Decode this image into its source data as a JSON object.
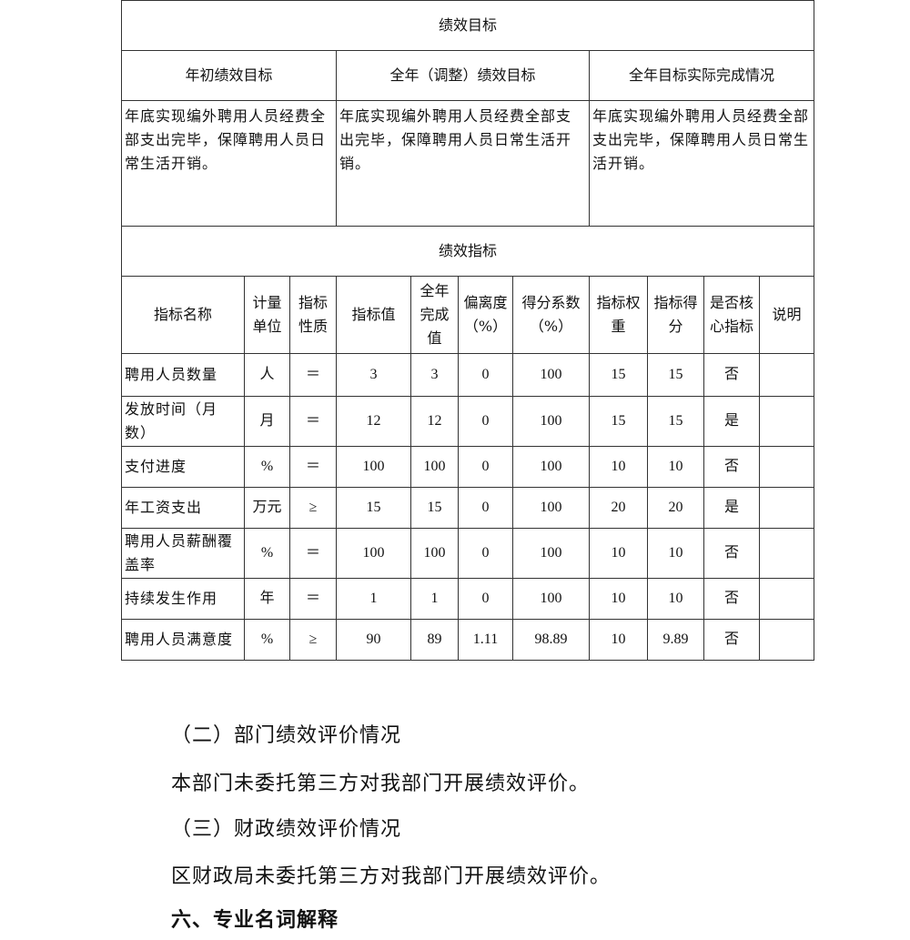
{
  "goal_section": {
    "title": "绩效目标",
    "headers": [
      "年初绩效目标",
      "全年（调整）绩效目标",
      "全年目标实际完成情况"
    ],
    "values": [
      "年底实现编外聘用人员经费全部支出完毕，保障聘用人员日常生活开销。",
      "年底实现编外聘用人员经费全部支出完毕，保障聘用人员日常生活开销。",
      "年底实现编外聘用人员经费全部支出完毕，保障聘用人员日常生活开销。"
    ]
  },
  "indicator_section": {
    "title": "绩效指标",
    "headers": [
      "指标名称",
      "计量单位",
      "指标性质",
      "指标值",
      "全年完成值",
      "偏离度（%）",
      "得分系数（%）",
      "指标权重",
      "指标得分",
      "是否核心指标",
      "说明"
    ],
    "rows": [
      [
        "聘用人员数量",
        "人",
        "＝",
        "3",
        "3",
        "0",
        "100",
        "15",
        "15",
        "否",
        ""
      ],
      [
        "发放时间（月数）",
        "月",
        "＝",
        "12",
        "12",
        "0",
        "100",
        "15",
        "15",
        "是",
        ""
      ],
      [
        "支付进度",
        "%",
        "＝",
        "100",
        "100",
        "0",
        "100",
        "10",
        "10",
        "否",
        ""
      ],
      [
        "年工资支出",
        "万元",
        "≥",
        "15",
        "15",
        "0",
        "100",
        "20",
        "20",
        "是",
        ""
      ],
      [
        "聘用人员薪酬覆盖率",
        "%",
        "＝",
        "100",
        "100",
        "0",
        "100",
        "10",
        "10",
        "否",
        ""
      ],
      [
        "持续发生作用",
        "年",
        "＝",
        "1",
        "1",
        "0",
        "100",
        "10",
        "10",
        "否",
        ""
      ],
      [
        "聘用人员满意度",
        "%",
        "≥",
        "90",
        "89",
        "1.11",
        "98.89",
        "10",
        "9.89",
        "否",
        ""
      ]
    ]
  },
  "text": {
    "h1": "（二）部门绩效评价情况",
    "p1": "本部门未委托第三方对我部门开展绩效评价。",
    "h2": "（三）财政绩效评价情况",
    "p2": "区财政局未委托第三方对我部门开展绩效评价。",
    "h3": "六、专业名词解释"
  }
}
